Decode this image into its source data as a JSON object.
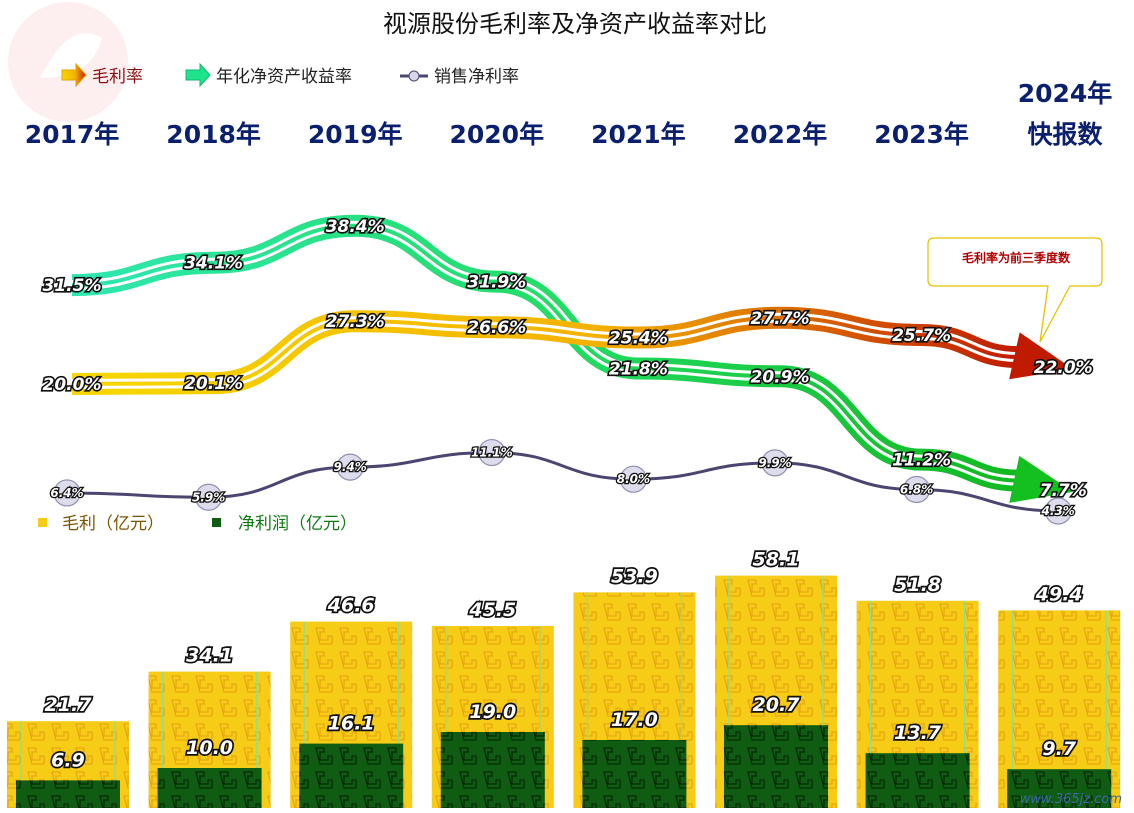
{
  "title": "视源股份毛利率及净资产收益率对比",
  "watermark": "www.365jz.com",
  "legend": {
    "gross_margin": "毛利率",
    "roe": "年化净资产收益率",
    "net_margin": "销售净利率",
    "gross_profit": "毛利（亿元）",
    "net_profit": "净利润（亿元）"
  },
  "callout": "毛利率为前三季度数",
  "colors": {
    "roe": "#1ee38a",
    "gross_margin": "#f5d400",
    "gross_margin_end": "#c01a00",
    "net_margin": "#4a4670",
    "bar_gross": "#f7cc16",
    "bar_net": "#0f5c12"
  },
  "chart_data": {
    "type": "bar+line",
    "categories": [
      "2017年",
      "2018年",
      "2019年",
      "2020年",
      "2021年",
      "2022年",
      "2023年",
      "2024年 快报数"
    ],
    "category_lines": [
      [
        "2017年"
      ],
      [
        "2018年"
      ],
      [
        "2019年"
      ],
      [
        "2020年"
      ],
      [
        "2021年"
      ],
      [
        "2022年"
      ],
      [
        "2023年"
      ],
      [
        "2024年",
        "快报数"
      ]
    ],
    "series": [
      {
        "name": "年化净资产收益率",
        "kind": "line",
        "unit": "%",
        "values": [
          31.5,
          34.1,
          38.4,
          31.9,
          21.8,
          20.9,
          11.2,
          7.7
        ]
      },
      {
        "name": "毛利率",
        "kind": "line",
        "unit": "%",
        "values": [
          20.0,
          20.1,
          27.3,
          26.6,
          25.4,
          27.7,
          25.7,
          22.0
        ]
      },
      {
        "name": "销售净利率",
        "kind": "line",
        "unit": "%",
        "values": [
          6.4,
          5.9,
          9.4,
          11.1,
          8.0,
          9.9,
          6.8,
          4.3
        ]
      },
      {
        "name": "毛利（亿元）",
        "kind": "bar",
        "values": [
          21.7,
          34.1,
          46.6,
          45.5,
          53.9,
          58.1,
          51.8,
          49.4
        ]
      },
      {
        "name": "净利润（亿元）",
        "kind": "bar",
        "values": [
          6.9,
          10.0,
          16.1,
          19.0,
          17.0,
          20.7,
          13.7,
          9.7
        ]
      }
    ]
  }
}
